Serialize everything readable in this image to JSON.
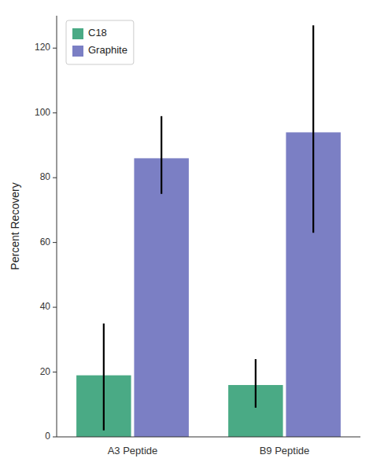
{
  "chart_data": {
    "type": "bar",
    "ylabel": "Percent Recovery",
    "categories": [
      "A3 Peptide",
      "B9 Peptide"
    ],
    "series": [
      {
        "name": "C18",
        "color": "#4aaa85",
        "values": [
          19,
          16
        ],
        "error_low": [
          17,
          7
        ],
        "error_high": [
          16,
          8
        ]
      },
      {
        "name": "Graphite",
        "color": "#7b7fc4",
        "values": [
          86,
          94
        ],
        "error_low": [
          11,
          31
        ],
        "error_high": [
          13,
          33
        ]
      }
    ],
    "ylim": [
      0,
      130
    ],
    "yticks": [
      0,
      20,
      40,
      60,
      80,
      100,
      120
    ],
    "grid": false,
    "legend": "upper left"
  }
}
